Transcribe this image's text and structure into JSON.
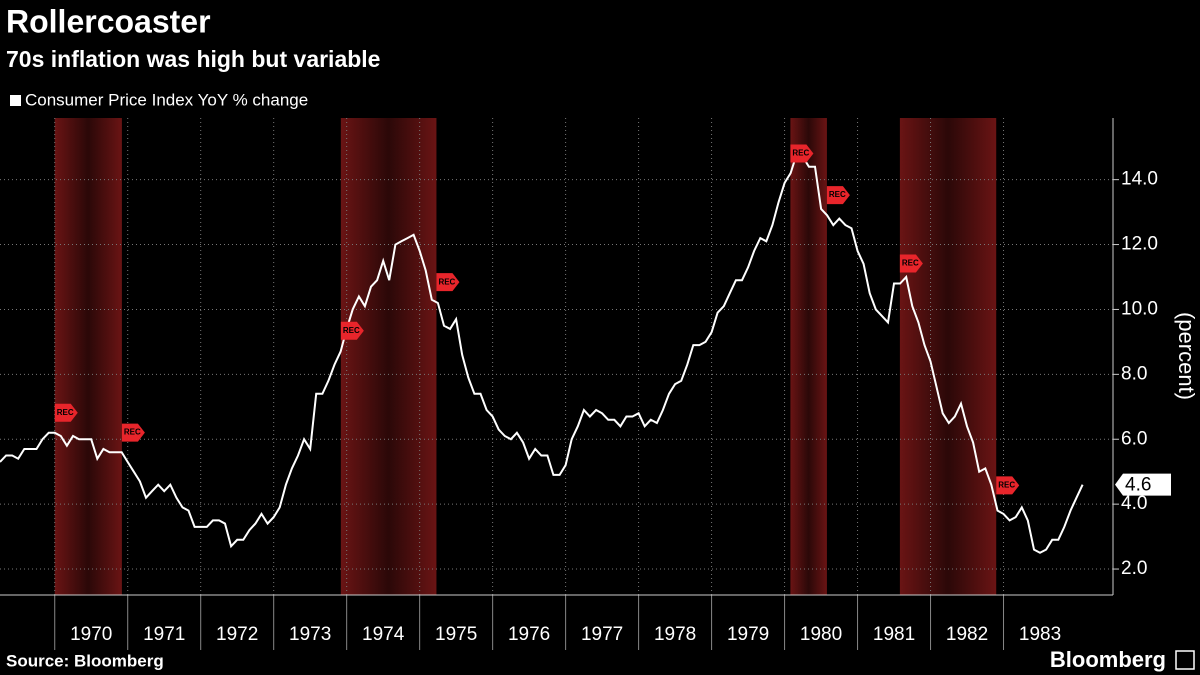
{
  "chart_data": {
    "type": "line",
    "title": "Rollercoaster",
    "subtitle": "70s inflation was high but variable",
    "y_label": "(percent)",
    "source": "Source: Bloomberg",
    "brand": "Bloomberg",
    "recession_label": "REC",
    "recessions": [
      [
        1970.0,
        1970.92
      ],
      [
        1973.92,
        1975.23
      ],
      [
        1980.08,
        1980.58
      ],
      [
        1981.58,
        1982.9
      ]
    ],
    "xlim": [
      1969.25,
      1984.5
    ],
    "xticks": [
      1970,
      1971,
      1972,
      1973,
      1974,
      1975,
      1976,
      1977,
      1978,
      1979,
      1980,
      1981,
      1982,
      1983
    ],
    "ylim": [
      1.2,
      15.9
    ],
    "yticks": [
      {
        "value": 2,
        "label": "2.0"
      },
      {
        "value": 4,
        "label": "4.0"
      },
      {
        "value": 6,
        "label": "6.0"
      },
      {
        "value": 8,
        "label": "8.0"
      },
      {
        "value": 10,
        "label": "10.0"
      },
      {
        "value": 12,
        "label": "12.0"
      },
      {
        "value": 14,
        "label": "14.0"
      }
    ],
    "grid": true,
    "x": [
      1969.25,
      1969.333,
      1969.417,
      1969.5,
      1969.583,
      1969.667,
      1969.75,
      1969.833,
      1969.917,
      1970,
      1970.083,
      1970.167,
      1970.25,
      1970.333,
      1970.417,
      1970.5,
      1970.583,
      1970.667,
      1970.75,
      1970.833,
      1970.917,
      1971,
      1971.083,
      1971.167,
      1971.25,
      1971.333,
      1971.417,
      1971.5,
      1971.583,
      1971.667,
      1971.75,
      1971.833,
      1971.917,
      1972,
      1972.083,
      1972.167,
      1972.25,
      1972.333,
      1972.417,
      1972.5,
      1972.583,
      1972.667,
      1972.75,
      1972.833,
      1972.917,
      1973,
      1973.083,
      1973.167,
      1973.25,
      1973.333,
      1973.417,
      1973.5,
      1973.583,
      1973.667,
      1973.75,
      1973.833,
      1973.917,
      1974,
      1974.083,
      1974.167,
      1974.25,
      1974.333,
      1974.417,
      1974.5,
      1974.583,
      1974.667,
      1974.75,
      1974.833,
      1974.917,
      1975,
      1975.083,
      1975.167,
      1975.25,
      1975.333,
      1975.417,
      1975.5,
      1975.583,
      1975.667,
      1975.75,
      1975.833,
      1975.917,
      1976,
      1976.083,
      1976.167,
      1976.25,
      1976.333,
      1976.417,
      1976.5,
      1976.583,
      1976.667,
      1976.75,
      1976.833,
      1976.917,
      1977,
      1977.083,
      1977.167,
      1977.25,
      1977.333,
      1977.417,
      1977.5,
      1977.583,
      1977.667,
      1977.75,
      1977.833,
      1977.917,
      1978,
      1978.083,
      1978.167,
      1978.25,
      1978.333,
      1978.417,
      1978.5,
      1978.583,
      1978.667,
      1978.75,
      1978.833,
      1978.917,
      1979,
      1979.083,
      1979.167,
      1979.25,
      1979.333,
      1979.417,
      1979.5,
      1979.583,
      1979.667,
      1979.75,
      1979.833,
      1979.917,
      1980,
      1980.083,
      1980.167,
      1980.25,
      1980.333,
      1980.417,
      1980.5,
      1980.583,
      1980.667,
      1980.75,
      1980.833,
      1980.917,
      1981,
      1981.083,
      1981.167,
      1981.25,
      1981.333,
      1981.417,
      1981.5,
      1981.583,
      1981.667,
      1981.75,
      1981.833,
      1981.917,
      1982,
      1982.083,
      1982.167,
      1982.25,
      1982.333,
      1982.417,
      1982.5,
      1982.583,
      1982.667,
      1982.75,
      1982.833,
      1982.917,
      1983,
      1983.083,
      1983.167,
      1983.25,
      1983.333,
      1983.417,
      1983.5,
      1983.583,
      1983.667,
      1983.75,
      1983.833,
      1983.917,
      1984,
      1984.083
    ],
    "series": [
      {
        "name": "Consumer Price Index YoY % change",
        "color": "#ffffff",
        "values": [
          5.3,
          5.5,
          5.5,
          5.4,
          5.7,
          5.7,
          5.7,
          6.0,
          6.2,
          6.2,
          6.1,
          5.8,
          6.1,
          6.0,
          6.0,
          6.0,
          5.4,
          5.7,
          5.6,
          5.6,
          5.6,
          5.3,
          5.0,
          4.7,
          4.2,
          4.4,
          4.6,
          4.4,
          4.6,
          4.2,
          3.9,
          3.8,
          3.3,
          3.3,
          3.3,
          3.5,
          3.5,
          3.4,
          2.7,
          2.9,
          2.9,
          3.2,
          3.4,
          3.7,
          3.4,
          3.6,
          3.9,
          4.6,
          5.1,
          5.5,
          6.0,
          5.7,
          7.4,
          7.4,
          7.8,
          8.3,
          8.7,
          9.4,
          10.0,
          10.4,
          10.1,
          10.7,
          10.9,
          11.5,
          10.9,
          12.0,
          12.1,
          12.2,
          12.3,
          11.8,
          11.2,
          10.3,
          10.2,
          9.5,
          9.4,
          9.7,
          8.6,
          7.9,
          7.4,
          7.4,
          6.9,
          6.7,
          6.3,
          6.1,
          6.0,
          6.2,
          5.9,
          5.4,
          5.7,
          5.5,
          5.5,
          4.9,
          4.9,
          5.2,
          6.0,
          6.4,
          6.9,
          6.7,
          6.9,
          6.8,
          6.6,
          6.6,
          6.4,
          6.7,
          6.7,
          6.8,
          6.4,
          6.6,
          6.5,
          6.9,
          7.4,
          7.7,
          7.8,
          8.3,
          8.9,
          8.9,
          9.0,
          9.3,
          9.9,
          10.1,
          10.5,
          10.9,
          10.9,
          11.3,
          11.8,
          12.2,
          12.1,
          12.6,
          13.3,
          13.9,
          14.2,
          14.8,
          14.7,
          14.4,
          14.4,
          13.1,
          12.9,
          12.6,
          12.8,
          12.6,
          12.5,
          11.8,
          11.4,
          10.5,
          10.0,
          9.8,
          9.6,
          10.8,
          10.8,
          11.0,
          10.1,
          9.6,
          8.9,
          8.4,
          7.6,
          6.8,
          6.5,
          6.7,
          7.1,
          6.4,
          5.9,
          5.0,
          5.1,
          4.6,
          3.8,
          3.7,
          3.5,
          3.6,
          3.9,
          3.5,
          2.6,
          2.5,
          2.6,
          2.9,
          2.9,
          3.3,
          3.8,
          4.2,
          4.6
        ]
      }
    ]
  }
}
